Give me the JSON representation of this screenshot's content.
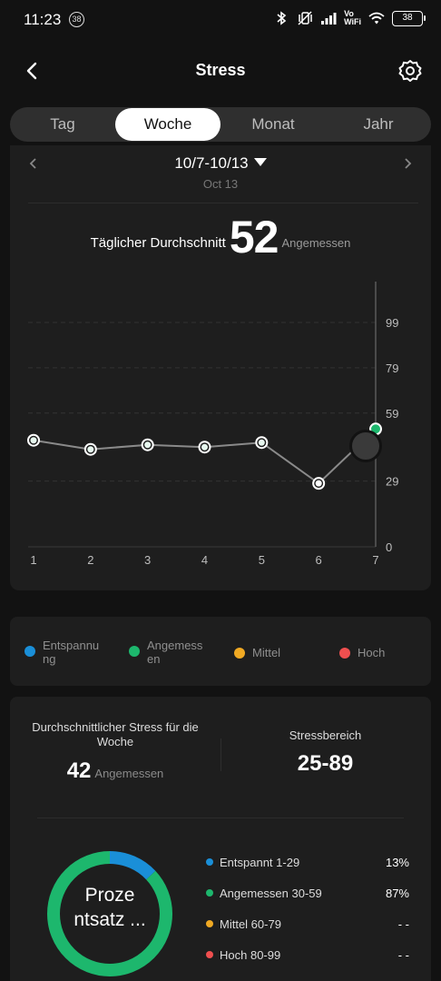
{
  "status_bar": {
    "time": "11:23",
    "badge": "38",
    "vowifi": "Vo\nWiFi",
    "battery": "38"
  },
  "header": {
    "title": "Stress",
    "back_icon": "chevron-left-icon",
    "settings_icon": "gear-icon"
  },
  "tabs": [
    {
      "label": "Tag",
      "active": false
    },
    {
      "label": "Woche",
      "active": true
    },
    {
      "label": "Monat",
      "active": false
    },
    {
      "label": "Jahr",
      "active": false
    }
  ],
  "date_nav": {
    "range": "10/7-10/13",
    "sub": "Oct 13"
  },
  "daily_average": {
    "label": "Täglicher Durchschnitt",
    "value": "52",
    "status": "Angemessen"
  },
  "chart_data": {
    "type": "line",
    "x": [
      1,
      2,
      3,
      4,
      5,
      6,
      7
    ],
    "xticks": [
      "1",
      "2",
      "3",
      "4",
      "5",
      "6",
      "7"
    ],
    "values": [
      47,
      43,
      45,
      44,
      46,
      28,
      52
    ],
    "yticks": [
      "0",
      "29",
      "59",
      "79",
      "99"
    ],
    "ytick_values": [
      0,
      29,
      59,
      79,
      99
    ],
    "ylim": [
      0,
      99
    ],
    "selected_index": 6,
    "line_color": "#8a8a8a",
    "point_color": "#ffffff",
    "selected_point_color": "#1db76d"
  },
  "legend": [
    {
      "label": "Entspannung",
      "line1": "Entspannu",
      "line2": "ng",
      "color": "#1a8fd8"
    },
    {
      "label": "Angemessen",
      "line1": "Angemess",
      "line2": "en",
      "color": "#1db76d"
    },
    {
      "label": "Mittel",
      "color": "#f0a923"
    },
    {
      "label": "Hoch",
      "color": "#ef4f4f"
    }
  ],
  "summary": {
    "week_avg_label": "Durchschnittlicher Stress für die Woche",
    "week_avg_value": "42",
    "week_avg_status": "Angemessen",
    "range_label": "Stressbereich",
    "range_value": "25-89",
    "donut_text_1": "Proze",
    "donut_text_2": "ntsatz ...",
    "donut_segments": [
      {
        "fraction": 0.13,
        "color": "#1a8fd8"
      },
      {
        "fraction": 0.87,
        "color": "#1db76d"
      }
    ],
    "ranges": [
      {
        "label": "Entspannt 1-29",
        "pct": "13%",
        "color": "#1a8fd8"
      },
      {
        "label": "Angemessen 30-59",
        "pct": "87%",
        "color": "#1db76d"
      },
      {
        "label": "Mittel 60-79",
        "pct": "- -",
        "color": "#f0a923"
      },
      {
        "label": "Hoch 80-99",
        "pct": "- -",
        "color": "#ef4f4f"
      }
    ]
  }
}
